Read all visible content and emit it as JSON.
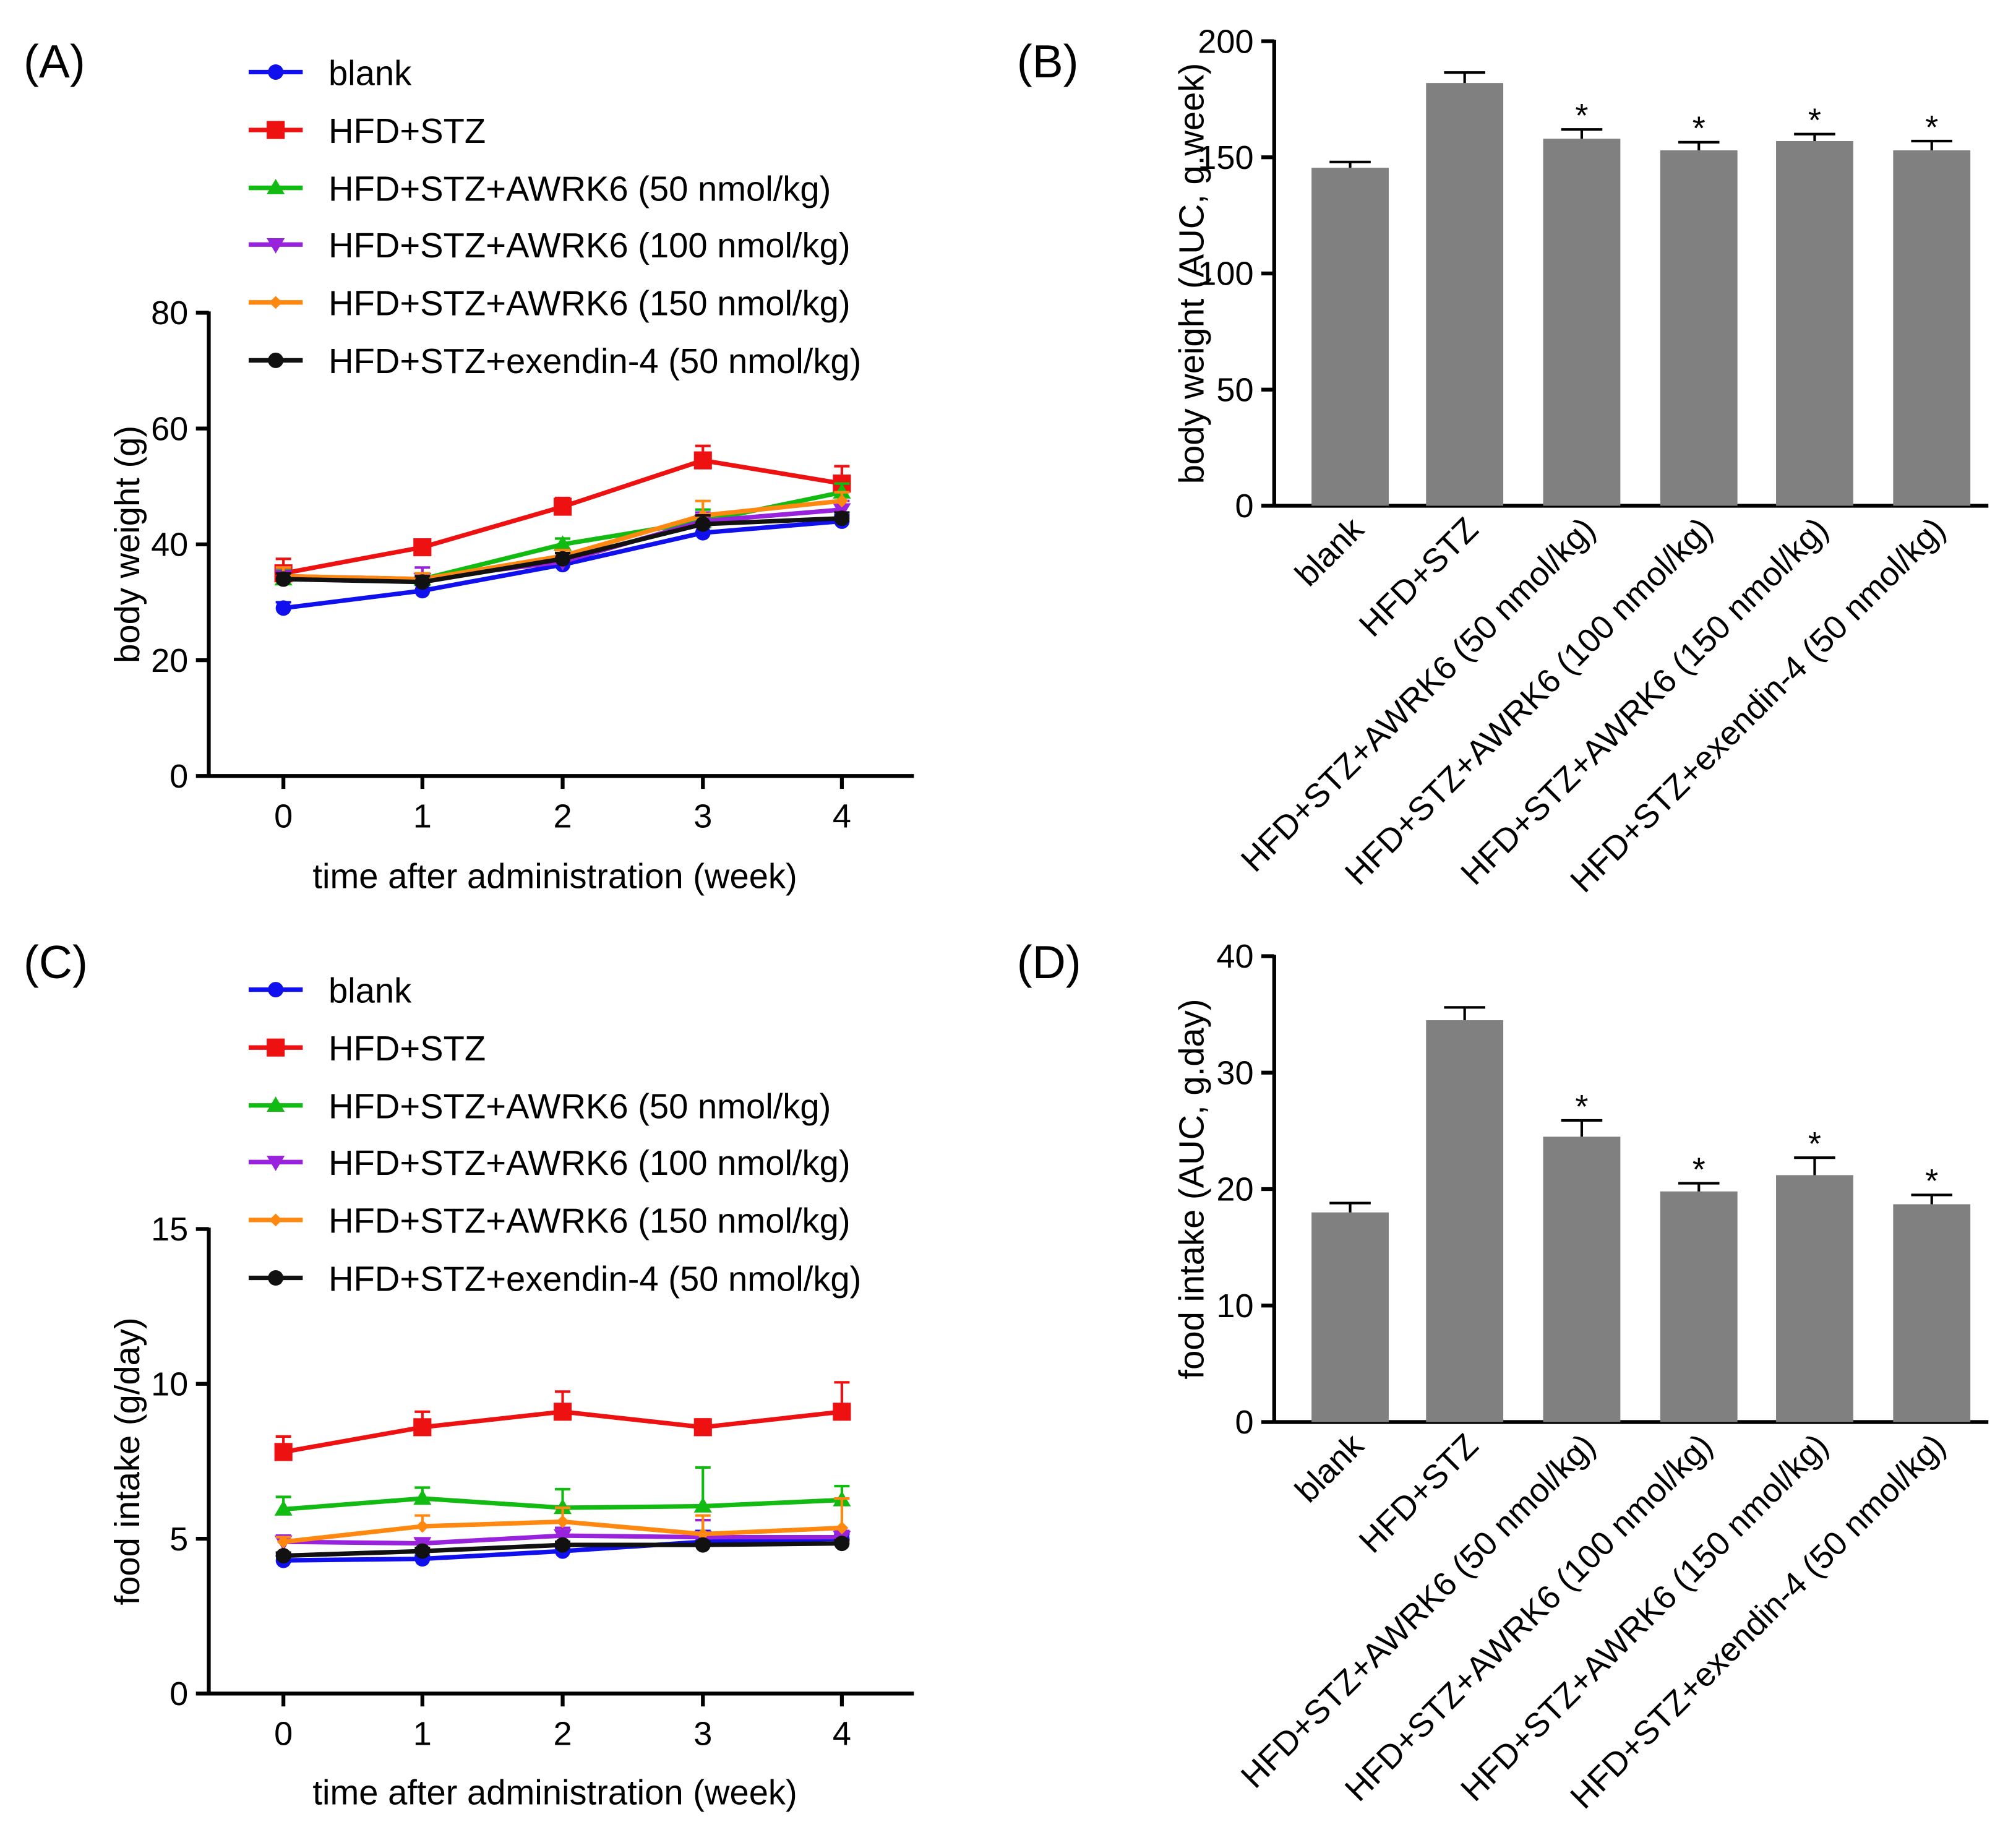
{
  "chart_data": [
    {
      "panel": "(A)",
      "type": "line",
      "xlabel": "time after administration (week)",
      "ylabel": "body weight (g)",
      "x": [
        0,
        1,
        2,
        3,
        4
      ],
      "xticks": [
        "0",
        "1",
        "2",
        "3",
        "4"
      ],
      "ylim": [
        0,
        80
      ],
      "yticks": [
        "0",
        "20",
        "40",
        "60",
        "80"
      ],
      "legend_position": "top",
      "series": [
        {
          "name": "blank",
          "color": "#1010ee",
          "marker": "circle",
          "values": [
            29,
            32,
            36.5,
            42,
            44
          ],
          "err": [
            1,
            1,
            1,
            1,
            1
          ]
        },
        {
          "name": "HFD+STZ",
          "color": "#ee1111",
          "marker": "square",
          "values": [
            35,
            39.5,
            46.5,
            54.5,
            50.5
          ],
          "err": [
            2.5,
            1,
            1.5,
            2.5,
            3
          ]
        },
        {
          "name": "HFD+STZ+AWRK6 (50 nmol/kg)",
          "color": "#11bb11",
          "marker": "triangle-up",
          "values": [
            34,
            34,
            40,
            44,
            49
          ],
          "err": [
            1.5,
            1,
            1,
            2,
            1.5
          ]
        },
        {
          "name": "HFD+STZ+AWRK6 (100 nmol/kg)",
          "color": "#9922dd",
          "marker": "triangle-down",
          "values": [
            34.5,
            34,
            37,
            44,
            46
          ],
          "err": [
            1.5,
            2,
            1,
            1.5,
            1.5
          ]
        },
        {
          "name": "HFD+STZ+AWRK6 (150 nmol/kg)",
          "color": "#ff8811",
          "marker": "diamond",
          "values": [
            34.5,
            34,
            38,
            45,
            47.5
          ],
          "err": [
            1.5,
            1,
            1,
            2.5,
            1.5
          ]
        },
        {
          "name": "HFD+STZ+exendin-4 (50 nmol/kg)",
          "color": "#111111",
          "marker": "circle",
          "values": [
            34,
            33.5,
            37.5,
            43.5,
            44.5
          ],
          "err": [
            1,
            1,
            1,
            1.5,
            1
          ]
        }
      ]
    },
    {
      "panel": "(B)",
      "type": "bar",
      "ylabel": "body weight (AUC, g.week)",
      "ylim": [
        0,
        200
      ],
      "yticks": [
        "0",
        "50",
        "100",
        "150",
        "200"
      ],
      "color": "#808080",
      "categories": [
        "blank",
        "HFD+STZ",
        "HFD+STZ+AWRK6 (50 nmol/kg)",
        "HFD+STZ+AWRK6 (100 nmol/kg)",
        "HFD+STZ+AWRK6 (150 nmol/kg)",
        "HFD+STZ+exendin-4 (50 nmol/kg)"
      ],
      "values": [
        145.5,
        182,
        158,
        153,
        157,
        153
      ],
      "err": [
        2.5,
        4.5,
        4,
        3.5,
        3,
        4
      ],
      "annotations": [
        "",
        "",
        "*",
        "*",
        "*",
        "*"
      ]
    },
    {
      "panel": "(C)",
      "type": "line",
      "xlabel": "time after administration (week)",
      "ylabel": "food intake (g/day)",
      "x": [
        0,
        1,
        2,
        3,
        4
      ],
      "xticks": [
        "0",
        "1",
        "2",
        "3",
        "4"
      ],
      "ylim": [
        0,
        15
      ],
      "yticks": [
        "0",
        "5",
        "10",
        "15"
      ],
      "legend_position": "top",
      "series": [
        {
          "name": "blank",
          "color": "#1010ee",
          "marker": "circle",
          "values": [
            4.3,
            4.35,
            4.6,
            4.9,
            5.0
          ],
          "err": [
            0.15,
            0.1,
            0.1,
            0.35,
            0.15
          ]
        },
        {
          "name": "HFD+STZ",
          "color": "#ee1111",
          "marker": "square",
          "values": [
            7.8,
            8.6,
            9.1,
            8.6,
            9.1
          ],
          "err": [
            0.5,
            0.5,
            0.65,
            0.25,
            0.95
          ]
        },
        {
          "name": "HFD+STZ+AWRK6 (50 nmol/kg)",
          "color": "#11bb11",
          "marker": "triangle-up",
          "values": [
            5.95,
            6.3,
            6.0,
            6.05,
            6.25
          ],
          "err": [
            0.4,
            0.35,
            0.6,
            1.25,
            0.45
          ]
        },
        {
          "name": "HFD+STZ+AWRK6 (100 nmol/kg)",
          "color": "#9922dd",
          "marker": "triangle-down",
          "values": [
            4.9,
            4.85,
            5.1,
            5.05,
            5.05
          ],
          "err": [
            0.2,
            0.15,
            0.25,
            0.55,
            0.2
          ]
        },
        {
          "name": "HFD+STZ+AWRK6 (150 nmol/kg)",
          "color": "#ff8811",
          "marker": "diamond",
          "values": [
            4.9,
            5.4,
            5.55,
            5.15,
            5.35
          ],
          "err": [
            0.15,
            0.35,
            0.45,
            0.6,
            0.95
          ]
        },
        {
          "name": "HFD+STZ+exendin-4 (50 nmol/kg)",
          "color": "#111111",
          "marker": "circle",
          "values": [
            4.45,
            4.6,
            4.8,
            4.8,
            4.85
          ],
          "err": [
            0.1,
            0.1,
            0.1,
            0.1,
            0.1
          ]
        }
      ]
    },
    {
      "panel": "(D)",
      "type": "bar",
      "ylabel": "food intake (AUC, g.day)",
      "ylim": [
        0,
        40
      ],
      "yticks": [
        "0",
        "10",
        "20",
        "30",
        "40"
      ],
      "color": "#808080",
      "categories": [
        "blank",
        "HFD+STZ",
        "HFD+STZ+AWRK6 (50 nmol/kg)",
        "HFD+STZ+AWRK6 (100 nmol/kg)",
        "HFD+STZ+AWRK6 (150 nmol/kg)",
        "HFD+STZ+exendin-4 (50 nmol/kg)"
      ],
      "values": [
        18,
        34.5,
        24.5,
        19.8,
        21.2,
        18.7
      ],
      "err": [
        0.8,
        1.1,
        1.4,
        0.7,
        1.5,
        0.8
      ],
      "annotations": [
        "",
        "",
        "*",
        "*",
        "*",
        "*"
      ]
    }
  ]
}
